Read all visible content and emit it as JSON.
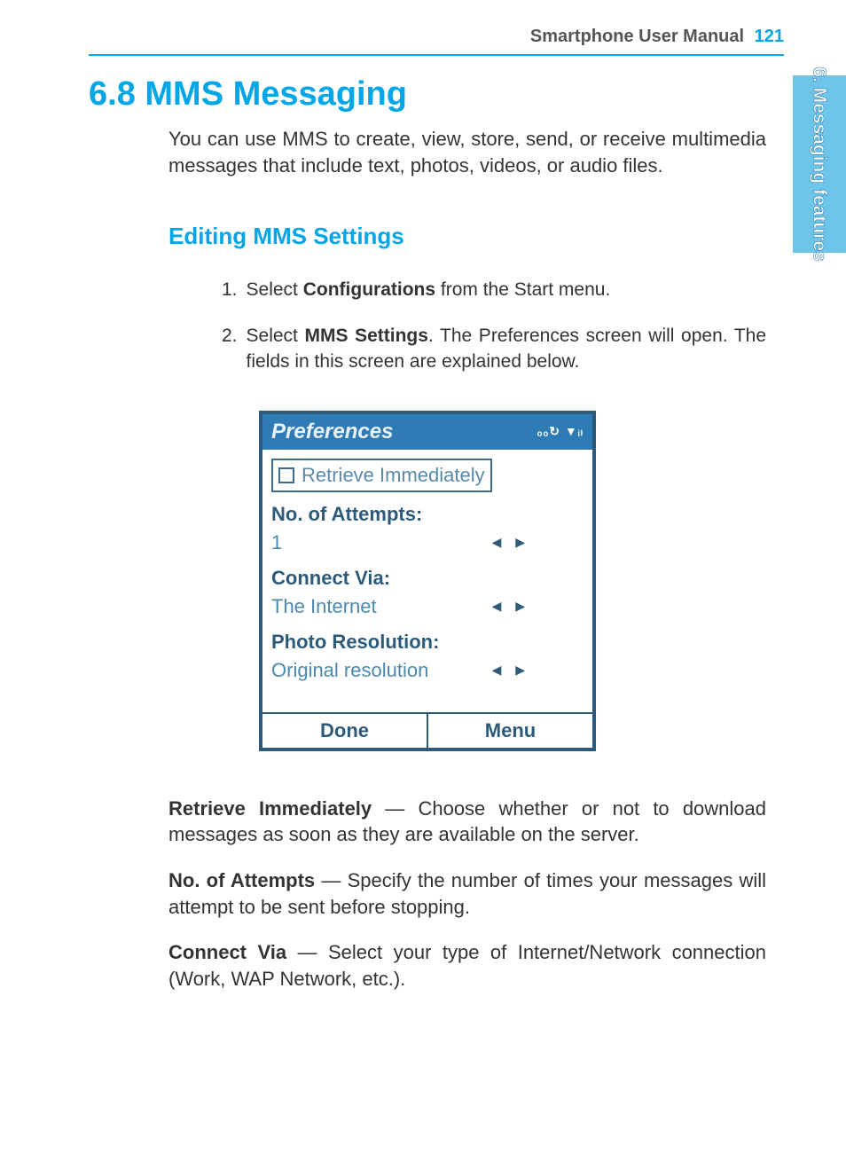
{
  "header": {
    "manual_title": "Smartphone User Manual",
    "page_number": "121"
  },
  "side_tab": {
    "label": "6. Messaging features"
  },
  "section": {
    "number": "6.8",
    "title": "MMS Messaging",
    "intro": "You can use MMS to create, view, store, send, or receive multimedia messages that include text, photos, videos, or audio files."
  },
  "subsection": {
    "title": "Editing MMS Settings",
    "steps": [
      {
        "num": "1.",
        "pre": "Select ",
        "bold": "Configurations",
        "post": " from the Start menu."
      },
      {
        "num": "2.",
        "pre": "Select ",
        "bold": "MMS Settings",
        "post": ".  The Preferences screen will open. The fields in this screen are explained below."
      }
    ]
  },
  "screenshot": {
    "titlebar_text": "Preferences",
    "titlebar_icons": "ₒₒ↻ ▼ᵢₗ",
    "checkbox_label": "Retrieve Immediately",
    "fields": [
      {
        "label": "No. of Attempts:",
        "value": "1"
      },
      {
        "label": "Connect Via:",
        "value": "The Internet"
      },
      {
        "label": "Photo Resolution:",
        "value": "Original resolution"
      }
    ],
    "footer_left": "Done",
    "footer_right": "Menu",
    "colors": {
      "border": "#2e5a7a",
      "titlebar_bg": "#2f7bb5",
      "label_color": "#2e5a7a",
      "value_color": "#4d88ad"
    }
  },
  "descriptions": [
    {
      "bold": "Retrieve Immediately",
      "text": " — Choose whether or not to download messages as soon as they are available on the server."
    },
    {
      "bold": "No. of Attempts",
      "text": " — Specify the number of times your messages will attempt to be sent before stopping."
    },
    {
      "bold": "Connect Via",
      "text": " — Select your type of Internet/Network connection (Work, WAP Network, etc.)."
    }
  ],
  "colors": {
    "accent": "#00a6e8",
    "side_tab_bg": "#6dc5ea",
    "body_text": "#333333"
  }
}
